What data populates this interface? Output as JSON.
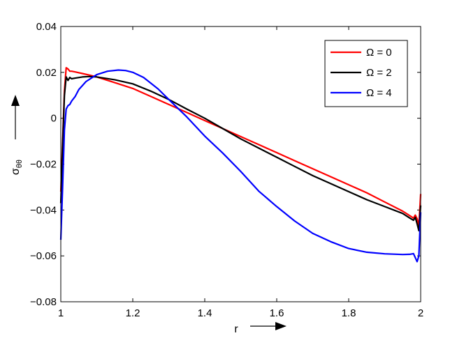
{
  "chart_data": {
    "type": "line",
    "xlabel": "r",
    "ylabel": "σ",
    "ylabel_subscript": "θθ",
    "xlim": [
      1,
      2
    ],
    "ylim": [
      -0.08,
      0.04
    ],
    "xticks": [
      "1",
      "1.2",
      "1.4",
      "1.6",
      "1.8",
      "2"
    ],
    "yticks": [
      "0.04",
      "0.02",
      "0",
      "−0.02",
      "−0.04",
      "−0.06",
      "−0.08"
    ],
    "grid": false,
    "legend_position": "top-right",
    "series": [
      {
        "name": "Ω = 0",
        "color": "#ff0000",
        "x": [
          1.0,
          1.005,
          1.01,
          1.015,
          1.02,
          1.025,
          1.03,
          1.04,
          1.06,
          1.08,
          1.1,
          1.15,
          1.2,
          1.25,
          1.3,
          1.35,
          1.4,
          1.45,
          1.5,
          1.55,
          1.6,
          1.65,
          1.7,
          1.75,
          1.8,
          1.85,
          1.9,
          1.95,
          1.97,
          1.98,
          1.985,
          1.99,
          1.995,
          2.0
        ],
        "y": [
          -0.032,
          -0.01,
          0.012,
          0.022,
          0.0215,
          0.0205,
          0.0205,
          0.0202,
          0.0195,
          0.0188,
          0.018,
          0.0155,
          0.013,
          0.0095,
          0.006,
          0.0025,
          -0.001,
          -0.0045,
          -0.008,
          -0.0115,
          -0.015,
          -0.0185,
          -0.022,
          -0.0255,
          -0.029,
          -0.0325,
          -0.0365,
          -0.0405,
          -0.0425,
          -0.0435,
          -0.0422,
          -0.0438,
          -0.047,
          -0.033
        ]
      },
      {
        "name": "Ω = 2",
        "color": "#000000",
        "x": [
          1.0,
          1.005,
          1.01,
          1.015,
          1.02,
          1.025,
          1.03,
          1.04,
          1.06,
          1.08,
          1.1,
          1.15,
          1.2,
          1.25,
          1.3,
          1.35,
          1.4,
          1.45,
          1.5,
          1.55,
          1.6,
          1.65,
          1.7,
          1.75,
          1.8,
          1.85,
          1.9,
          1.95,
          1.97,
          1.98,
          1.985,
          1.99,
          1.995,
          2.0
        ],
        "y": [
          -0.037,
          -0.012,
          0.01,
          0.018,
          0.0165,
          0.0178,
          0.0172,
          0.0175,
          0.018,
          0.0182,
          0.018,
          0.0168,
          0.015,
          0.0118,
          0.0082,
          0.004,
          0.0,
          -0.0045,
          -0.009,
          -0.013,
          -0.017,
          -0.021,
          -0.025,
          -0.0285,
          -0.032,
          -0.0355,
          -0.0385,
          -0.0415,
          -0.0435,
          -0.0445,
          -0.0432,
          -0.046,
          -0.049,
          -0.038
        ]
      },
      {
        "name": "Ω = 4",
        "color": "#0000ff",
        "x": [
          1.0,
          1.005,
          1.01,
          1.015,
          1.02,
          1.025,
          1.03,
          1.04,
          1.05,
          1.07,
          1.1,
          1.13,
          1.16,
          1.18,
          1.2,
          1.23,
          1.27,
          1.3,
          1.35,
          1.4,
          1.45,
          1.5,
          1.55,
          1.6,
          1.65,
          1.7,
          1.75,
          1.8,
          1.85,
          1.9,
          1.95,
          1.97,
          1.98,
          1.99,
          1.995,
          2.0
        ],
        "y": [
          -0.053,
          -0.03,
          -0.005,
          0.004,
          0.0055,
          0.006,
          0.0075,
          0.0095,
          0.0125,
          0.016,
          0.019,
          0.0205,
          0.021,
          0.0208,
          0.02,
          0.0178,
          0.0128,
          0.0082,
          0.0006,
          -0.0078,
          -0.0152,
          -0.0232,
          -0.0318,
          -0.0385,
          -0.0448,
          -0.0502,
          -0.0538,
          -0.0568,
          -0.0584,
          -0.0591,
          -0.0594,
          -0.0593,
          -0.059,
          -0.0625,
          -0.06,
          -0.041
        ]
      }
    ]
  }
}
